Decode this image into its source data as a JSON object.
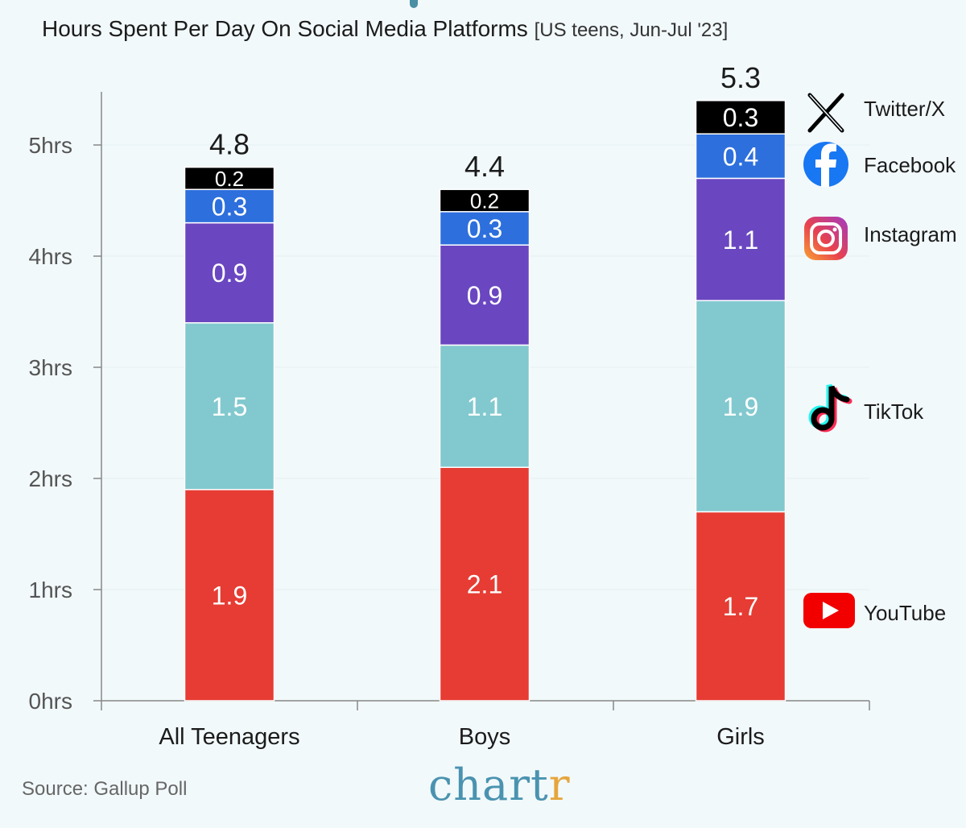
{
  "title": "Hours Spent Per Day On Social Media Platforms",
  "subtitle": "[US teens, Jun-Jul '23]",
  "source": "Source: Gallup Poll",
  "brand": {
    "main": "chart",
    "accent": "r"
  },
  "chart_data": {
    "type": "bar",
    "stacked": true,
    "categories": [
      "All Teenagers",
      "Boys",
      "Girls"
    ],
    "totals": [
      "4.8",
      "4.4",
      "5.3"
    ],
    "y_ticks": [
      "0hrs",
      "1hrs",
      "2hrs",
      "3hrs",
      "4hrs",
      "5hrs"
    ],
    "ylim": [
      0,
      5.5
    ],
    "grid": true,
    "legend_position": "right",
    "series": [
      {
        "name": "YouTube",
        "color": "#e63c33",
        "icon": "youtube-icon",
        "values": [
          1.9,
          2.1,
          1.7
        ]
      },
      {
        "name": "TikTok",
        "color": "#82c9cf",
        "icon": "tiktok-icon",
        "values": [
          1.5,
          1.1,
          1.9
        ]
      },
      {
        "name": "Instagram",
        "color": "#6a47c1",
        "icon": "instagram-icon",
        "values": [
          0.9,
          0.9,
          1.1
        ]
      },
      {
        "name": "Facebook",
        "color": "#2d6fdc",
        "icon": "facebook-icon",
        "values": [
          0.3,
          0.3,
          0.4
        ]
      },
      {
        "name": "Twitter/X",
        "color": "#000000",
        "icon": "x-icon",
        "values": [
          0.2,
          0.2,
          0.3
        ]
      }
    ]
  }
}
